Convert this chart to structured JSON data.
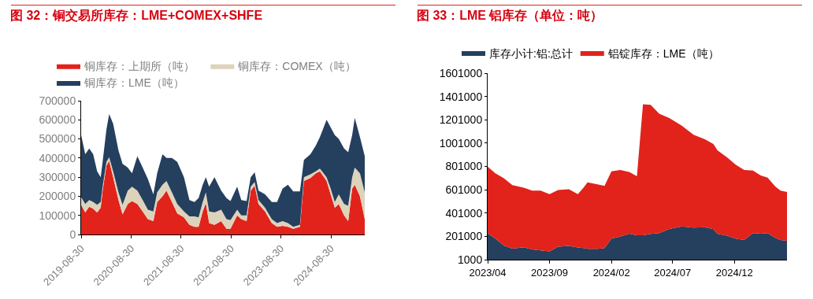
{
  "chart_data": [
    {
      "type": "area",
      "title": "图 32：铜交易所库存：LME+COMEX+SHFE",
      "stacked": true,
      "legend": "top",
      "grid": false,
      "x": [
        "2019-08-30",
        "2019-09-29",
        "2019-10-28",
        "2019-11-26",
        "2019-12-25",
        "2020-01-20",
        "2020-02-03",
        "2020-03-02",
        "2020-03-22",
        "2020-04-20",
        "2020-05-29",
        "2020-06-28",
        "2020-08-05",
        "2020-09-05",
        "2020-10-14",
        "2020-11-22",
        "2020-12-30",
        "2021-02-08",
        "2021-03-08",
        "2021-04-16",
        "2021-05-15",
        "2021-06-24",
        "2021-08-02",
        "2021-09-20",
        "2021-10-30",
        "2021-12-06",
        "2022-01-05",
        "2022-02-04",
        "2022-02-27",
        "2022-03-23",
        "2022-05-01",
        "2022-06-19",
        "2022-07-28",
        "2022-08-26",
        "2022-10-14",
        "2022-11-13",
        "2022-12-22",
        "2023-01-21",
        "2023-02-19",
        "2023-03-19",
        "2023-05-06",
        "2023-06-24",
        "2023-08-02",
        "2023-09-11",
        "2023-10-20",
        "2023-11-28",
        "2024-01-16",
        "2024-02-14",
        "2024-04-02",
        "2024-05-11",
        "2024-06-10",
        "2024-07-29",
        "2024-08-28",
        "2024-09-27",
        "2024-10-26",
        "2024-12-04",
        "2025-01-03",
        "2025-02-01",
        "2025-02-20",
        "2025-03-30",
        "2025-05-04"
      ],
      "series": [
        {
          "name": "铜库存：上期所（吨）",
          "color": "#e1231b",
          "values": [
            155000,
            115000,
            145000,
            135000,
            115000,
            140000,
            230000,
            360000,
            385000,
            300000,
            180000,
            105000,
            160000,
            175000,
            160000,
            120000,
            80000,
            70000,
            170000,
            200000,
            230000,
            170000,
            110000,
            90000,
            50000,
            40000,
            40000,
            120000,
            165000,
            60000,
            50000,
            70000,
            30000,
            30000,
            100000,
            80000,
            70000,
            230000,
            255000,
            160000,
            120000,
            60000,
            40000,
            45000,
            40000,
            30000,
            40000,
            280000,
            295000,
            320000,
            330000,
            280000,
            210000,
            140000,
            160000,
            100000,
            70000,
            240000,
            260000,
            200000,
            80000
          ]
        },
        {
          "name": "铜库存：COMEX（吨）",
          "color": "#ddd3bb",
          "values": [
            40000,
            45000,
            35000,
            35000,
            40000,
            30000,
            20000,
            20000,
            20000,
            30000,
            40000,
            50000,
            70000,
            75000,
            70000,
            60000,
            50000,
            50000,
            50000,
            60000,
            50000,
            50000,
            50000,
            30000,
            45000,
            55000,
            50000,
            50000,
            55000,
            60000,
            65000,
            60000,
            50000,
            45000,
            30000,
            20000,
            30000,
            20000,
            20000,
            20000,
            20000,
            20000,
            20000,
            25000,
            20000,
            10000,
            10000,
            20000,
            20000,
            10000,
            15000,
            20000,
            30000,
            30000,
            50000,
            60000,
            80000,
            60000,
            90000,
            120000,
            140000
          ]
        },
        {
          "name": "铜库存：LME（吨）",
          "color": "#253f5e",
          "values": [
            325000,
            260000,
            270000,
            250000,
            175000,
            130000,
            130000,
            170000,
            225000,
            250000,
            220000,
            215000,
            120000,
            70000,
            180000,
            170000,
            160000,
            90000,
            100000,
            160000,
            120000,
            180000,
            220000,
            180000,
            85000,
            75000,
            100000,
            90000,
            80000,
            130000,
            185000,
            100000,
            110000,
            100000,
            120000,
            80000,
            75000,
            50000,
            50000,
            50000,
            70000,
            90000,
            110000,
            170000,
            200000,
            185000,
            175000,
            90000,
            105000,
            135000,
            165000,
            300000,
            320000,
            350000,
            290000,
            290000,
            280000,
            220000,
            260000,
            190000,
            190000
          ]
        }
      ],
      "xlim": [
        "2019-08-30",
        "2025-05-04"
      ],
      "xticks": [
        "2019-08-30",
        "2020-08-30",
        "2021-08-30",
        "2022-08-30",
        "2023-08-30",
        "2024-08-30"
      ],
      "ylim": [
        0,
        700000
      ],
      "yticks": [
        0,
        100000,
        200000,
        300000,
        400000,
        500000,
        600000,
        700000
      ]
    },
    {
      "type": "area",
      "title": "图 33：LME 铝库存（单位：吨）",
      "stacked": true,
      "legend": "top",
      "grid": false,
      "x": [
        "2023-04-01",
        "2023-04-20",
        "2023-05-11",
        "2023-06-01",
        "2023-06-29",
        "2023-07-20",
        "2023-08-10",
        "2023-09-01",
        "2023-09-22",
        "2023-10-19",
        "2023-11-10",
        "2023-11-24",
        "2023-12-04",
        "2023-12-28",
        "2024-01-15",
        "2024-02-01",
        "2024-02-23",
        "2024-03-17",
        "2024-04-04",
        "2024-04-19",
        "2024-05-08",
        "2024-05-29",
        "2024-06-23",
        "2024-07-24",
        "2024-08-22",
        "2024-09-19",
        "2024-10-10",
        "2024-10-20",
        "2024-11-14",
        "2024-12-04",
        "2024-12-25",
        "2025-01-16",
        "2025-02-04",
        "2025-02-21",
        "2025-03-12",
        "2025-03-25",
        "2025-04-10"
      ],
      "series": [
        {
          "name": "库存小计:铝:总计",
          "color": "#253f5e",
          "values": [
            229000,
            182000,
            123000,
            95000,
            107000,
            88000,
            81000,
            72000,
            112000,
            119000,
            105000,
            100000,
            93000,
            93000,
            100000,
            182000,
            201000,
            224000,
            210000,
            210000,
            222000,
            229000,
            264000,
            286000,
            276000,
            279000,
            262000,
            224000,
            206000,
            182000,
            170000,
            229000,
            224000,
            229000,
            189000,
            170000,
            163000
          ]
        },
        {
          "name": "铝锭库存：LME（吨）",
          "color": "#e1231b",
          "values": [
            570000,
            560000,
            577000,
            546000,
            511000,
            506000,
            513000,
            491000,
            487000,
            487000,
            458000,
            518000,
            572000,
            555000,
            534000,
            577000,
            569000,
            528000,
            506000,
            1125000,
            1108000,
            1024000,
            953000,
            865000,
            796000,
            755000,
            732000,
            716000,
            670000,
            635000,
            600000,
            537000,
            499000,
            476000,
            440000,
            424000,
            419000
          ]
        }
      ],
      "xlim": [
        "2023-04-01",
        "2025-04-10"
      ],
      "xticks": [
        {
          "value": "2023-04-01",
          "label": "2023/04"
        },
        {
          "value": "2023-09-01",
          "label": "2023/09"
        },
        {
          "value": "2024-02-01",
          "label": "2024/02"
        },
        {
          "value": "2024-07-01",
          "label": "2024/07"
        },
        {
          "value": "2024-12-01",
          "label": "2024/12"
        }
      ],
      "ylim": [
        1000,
        1601000
      ],
      "yticks": [
        1000,
        201000,
        401000,
        601000,
        801000,
        1001000,
        1201000,
        1401000,
        1601000
      ]
    }
  ]
}
